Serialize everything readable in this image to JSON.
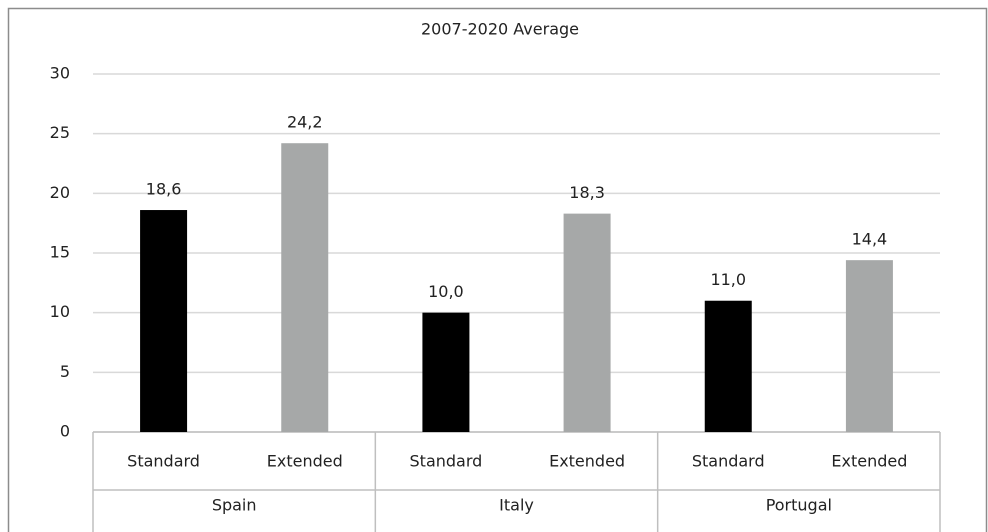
{
  "chart_data": {
    "type": "bar",
    "title": "2007-2020 Average",
    "categories": [
      "Spain",
      "Italy",
      "Portugal"
    ],
    "series": [
      {
        "name": "Standard",
        "color": "#000000",
        "values": [
          18.6,
          10.0,
          11.0
        ],
        "value_labels": [
          "18,6",
          "10,0",
          "11,0"
        ]
      },
      {
        "name": "Extended",
        "color": "#a6a8a8",
        "values": [
          24.2,
          18.3,
          14.4
        ],
        "value_labels": [
          "24,2",
          "18,3",
          "14,4"
        ]
      }
    ],
    "ylim": [
      0,
      30
    ],
    "yticks": [
      0,
      5,
      10,
      15,
      20,
      25,
      30
    ],
    "grid": true
  }
}
